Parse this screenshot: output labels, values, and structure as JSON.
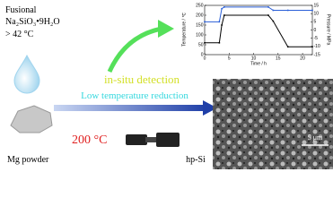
{
  "left_panel": {
    "line1": "Fusional",
    "line2": "Na₂SiO₃•9H₂O",
    "line3": "> 42 °C",
    "mg_label": "Mg powder"
  },
  "center": {
    "detection": "in-situ detection",
    "reduction": "Low temperature reduction",
    "temperature": "200 °C"
  },
  "product": {
    "label": "hp-Si",
    "scale_bar": "5 μm"
  },
  "inset_chart": {
    "type": "line",
    "xlabel": "Time / h",
    "ylabel": "Temperature / ℃",
    "y2label": "Pressure / MPa",
    "x": [
      0,
      3,
      3.5,
      4,
      13,
      14,
      17,
      22
    ],
    "series": [
      {
        "color": "#000000",
        "values": [
          60,
          60,
          150,
          200,
          200,
          170,
          40,
          40
        ]
      },
      {
        "color": "#2a5fd8",
        "axis": "y2",
        "values": [
          5,
          5,
          13,
          14,
          14,
          12,
          12,
          12
        ]
      }
    ],
    "xlim": [
      0,
      22
    ],
    "ylim": [
      0,
      250
    ],
    "y2lim": [
      -15,
      15
    ],
    "xticks": [
      0,
      5,
      10,
      15,
      20
    ],
    "yticks": [
      0,
      50,
      100,
      150,
      200,
      250
    ],
    "y2ticks": [
      -15,
      -10,
      -5,
      0,
      5,
      10,
      15
    ]
  }
}
